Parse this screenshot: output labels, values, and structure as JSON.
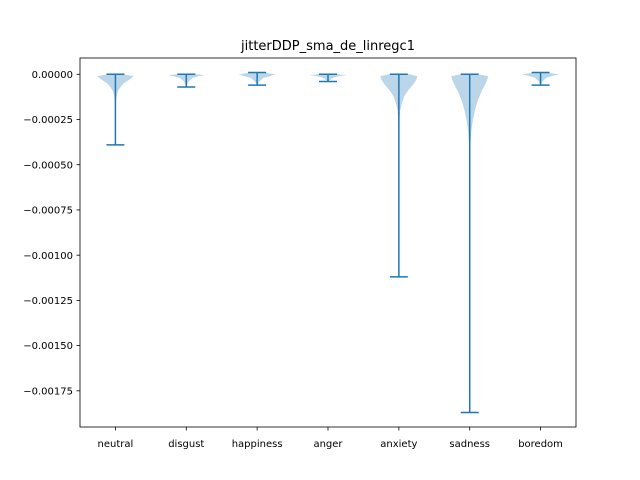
{
  "chart_data": {
    "type": "violin",
    "title": "jitterDDP_sma_de_linregc1",
    "xlabel": "",
    "ylabel": "",
    "categories": [
      "neutral",
      "disgust",
      "happiness",
      "anger",
      "anxiety",
      "sadness",
      "boredom"
    ],
    "ylim": [
      -0.00195,
      9e-05
    ],
    "yticks": [
      0.0,
      -0.00025,
      -0.0005,
      -0.00075,
      -0.001,
      -0.00125,
      -0.0015,
      -0.00175
    ],
    "ytick_labels": [
      "0.00000",
      "−0.00025",
      "−0.00050",
      "−0.00075",
      "−0.00100",
      "−0.00125",
      "−0.00150",
      "−0.00175"
    ],
    "series": [
      {
        "min": -0.00039,
        "max": 0.0,
        "width": 0.26,
        "profile": [
          [
            0.0,
            0.35
          ],
          [
            -1e-05,
            1.0
          ],
          [
            -3e-05,
            0.75
          ],
          [
            -5e-05,
            0.45
          ],
          [
            -7e-05,
            0.28
          ],
          [
            -9e-05,
            0.15
          ],
          [
            -0.00012,
            0.06
          ],
          [
            -0.00016,
            0.02
          ],
          [
            -0.00039,
            0.0
          ]
        ]
      },
      {
        "min": -7e-05,
        "max": 0.0,
        "width": 0.26,
        "profile": [
          [
            0.0,
            0.5
          ],
          [
            -5e-06,
            1.0
          ],
          [
            -1e-05,
            0.7
          ],
          [
            -2e-05,
            0.35
          ],
          [
            -4e-05,
            0.12
          ],
          [
            -7e-05,
            0.0
          ]
        ]
      },
      {
        "min": -6e-05,
        "max": 1e-05,
        "width": 0.26,
        "profile": [
          [
            1e-05,
            0.3
          ],
          [
            0.0,
            1.0
          ],
          [
            -1e-05,
            0.7
          ],
          [
            -2e-05,
            0.35
          ],
          [
            -4e-05,
            0.12
          ],
          [
            -6e-05,
            0.0
          ]
        ]
      },
      {
        "min": -4e-05,
        "max": 0.0,
        "width": 0.26,
        "profile": [
          [
            0.0,
            0.5
          ],
          [
            -5e-06,
            1.0
          ],
          [
            -1e-05,
            0.6
          ],
          [
            -2e-05,
            0.25
          ],
          [
            -4e-05,
            0.0
          ]
        ]
      },
      {
        "min": -0.00112,
        "max": 0.0,
        "width": 0.26,
        "profile": [
          [
            0.0,
            0.55
          ],
          [
            -1e-05,
            1.0
          ],
          [
            -3e-05,
            0.95
          ],
          [
            -6e-05,
            0.75
          ],
          [
            -9e-05,
            0.5
          ],
          [
            -0.00012,
            0.3
          ],
          [
            -0.00016,
            0.16
          ],
          [
            -0.0002,
            0.07
          ],
          [
            -0.00028,
            0.02
          ],
          [
            -0.00112,
            0.0
          ]
        ]
      },
      {
        "min": -0.00187,
        "max": 0.0,
        "width": 0.26,
        "profile": [
          [
            0.0,
            0.45
          ],
          [
            -1e-05,
            1.0
          ],
          [
            -3e-05,
            0.95
          ],
          [
            -6e-05,
            0.82
          ],
          [
            -0.0001,
            0.62
          ],
          [
            -0.00015,
            0.42
          ],
          [
            -0.0002,
            0.28
          ],
          [
            -0.00026,
            0.16
          ],
          [
            -0.00032,
            0.08
          ],
          [
            -0.0004,
            0.03
          ],
          [
            -0.00187,
            0.0
          ]
        ]
      },
      {
        "min": -6e-05,
        "max": 1e-05,
        "width": 0.26,
        "profile": [
          [
            1e-05,
            0.3
          ],
          [
            0.0,
            1.0
          ],
          [
            -1e-05,
            0.6
          ],
          [
            -2e-05,
            0.3
          ],
          [
            -4e-05,
            0.1
          ],
          [
            -6e-05,
            0.0
          ]
        ]
      }
    ],
    "colors": {
      "body": "#1f77b4",
      "body_opacity": 0.3,
      "lines": "#1f77b4",
      "axis": "#000000"
    }
  }
}
